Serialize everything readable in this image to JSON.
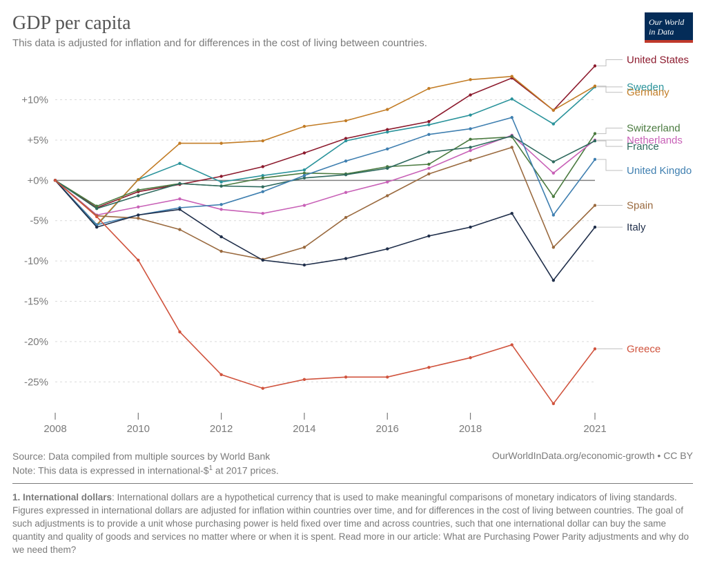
{
  "logo": {
    "line1": "Our World",
    "line2": "in Data",
    "bg": "#042c58",
    "accent": "#c0392b"
  },
  "header": {
    "title": "GDP per capita",
    "subtitle": "This data is adjusted for inflation and for differences in the cost of living between countries."
  },
  "chart": {
    "type": "line",
    "background_color": "#ffffff",
    "grid_color": "#d9d9d9",
    "axis_color": "#7a7a7a",
    "zero_line_color": "#808080",
    "axis_fontsize": 15,
    "label_fontsize": 15,
    "marker_style": "circle",
    "marker_radius": 2.2,
    "line_width": 1.6,
    "x": {
      "ticks": [
        2008,
        2010,
        2012,
        2014,
        2016,
        2018,
        2021
      ],
      "min": 2008,
      "max": 2021
    },
    "y": {
      "ticks": [
        -25,
        -20,
        -15,
        -10,
        -5,
        0,
        5,
        10
      ],
      "tick_labels": [
        "-25%",
        "-20%",
        "-15%",
        "-10%",
        "-5%",
        "+0%",
        "+5%",
        "+10%"
      ],
      "min": -29,
      "max": 14.5
    },
    "label_order": [
      "United States",
      "Sweden",
      "Germany",
      "Switzerland",
      "Netherlands",
      "France",
      "United Kingdom",
      "Spain",
      "Italy",
      "Greece"
    ],
    "series": {
      "United States": {
        "color": "#8c1a2d",
        "values": [
          0.0,
          -3.4,
          -1.4,
          -0.5,
          0.5,
          1.7,
          3.4,
          5.2,
          6.3,
          7.3,
          10.6,
          12.7,
          8.7,
          14.2
        ]
      },
      "Sweden": {
        "color": "#2a939b",
        "values": [
          0.0,
          -5.6,
          0.1,
          2.1,
          -0.2,
          0.6,
          1.3,
          4.9,
          6.0,
          6.9,
          8.1,
          10.1,
          7.0,
          11.6
        ]
      },
      "Germany": {
        "color": "#c27c25",
        "values": [
          0.0,
          -5.5,
          0.1,
          4.6,
          4.6,
          4.9,
          6.7,
          7.4,
          8.8,
          11.4,
          12.5,
          12.9,
          8.7,
          11.7
        ]
      },
      "Switzerland": {
        "color": "#4a7a3f",
        "values": [
          0.0,
          -3.2,
          -1.2,
          -0.4,
          -0.7,
          0.3,
          0.9,
          0.8,
          1.7,
          2.0,
          5.1,
          5.4,
          -2.0,
          5.8
        ]
      },
      "Netherlands": {
        "color": "#c861b7",
        "values": [
          0.0,
          -4.3,
          -3.3,
          -2.3,
          -3.6,
          -4.1,
          -3.1,
          -1.5,
          -0.2,
          1.5,
          3.7,
          5.6,
          0.9,
          5.0
        ]
      },
      "France": {
        "color": "#2f6a5e",
        "values": [
          0.0,
          -3.5,
          -1.9,
          -0.4,
          -0.7,
          -0.8,
          0.3,
          0.7,
          1.5,
          3.5,
          4.1,
          5.5,
          2.3,
          4.9
        ]
      },
      "United Kingdom": {
        "color": "#3f7fb0",
        "values": [
          0.0,
          -5.5,
          -4.3,
          -3.4,
          -3.0,
          -1.4,
          0.6,
          2.4,
          3.9,
          5.7,
          6.4,
          7.8,
          -4.3,
          2.6
        ]
      },
      "Spain": {
        "color": "#9a6a3f",
        "values": [
          0.0,
          -4.4,
          -4.7,
          -6.1,
          -8.8,
          -9.8,
          -8.3,
          -4.6,
          -1.9,
          0.8,
          2.5,
          4.1,
          -8.3,
          -3.1
        ]
      },
      "Italy": {
        "color": "#1f2e4a",
        "values": [
          0.0,
          -5.8,
          -4.3,
          -3.6,
          -7.0,
          -9.9,
          -10.5,
          -9.7,
          -8.5,
          -6.9,
          -5.8,
          -4.1,
          -12.4,
          -5.8
        ]
      },
      "Greece": {
        "color": "#d0533d",
        "values": [
          0.0,
          -4.5,
          -9.9,
          -18.8,
          -24.1,
          -25.8,
          -24.7,
          -24.4,
          -24.4,
          -23.2,
          -22.0,
          -20.4,
          -27.7,
          -20.9
        ]
      }
    },
    "label_offsets": {
      "United States": -9,
      "Sweden": 0,
      "Germany": 9,
      "Switzerland": -8,
      "Netherlands": 0,
      "France": 8,
      "United Kingdom": 16,
      "Spain": 0,
      "Italy": 0,
      "Greece": 0
    }
  },
  "meta": {
    "source": "Source: Data compiled from multiple sources by World Bank",
    "note_prefix": "Note: This data is expressed in international-$",
    "note_sup": "1",
    "note_suffix": " at 2017 prices.",
    "credit": "OurWorldInData.org/economic-growth • CC BY"
  },
  "footnote": {
    "label": "1. International dollars",
    "text": ": International dollars are a hypothetical currency that is used to make meaningful comparisons of monetary indicators of living standards. Figures expressed in international dollars are adjusted for inflation within countries over time, and for differences in the cost of living between countries. The goal of such adjustments is to provide a unit whose purchasing power is held fixed over time and across countries, such that one international dollar can buy the same quantity and quality of goods and services no matter where or when it is spent. Read more in our article: What are Purchasing Power Parity adjustments and why do we need them?"
  }
}
